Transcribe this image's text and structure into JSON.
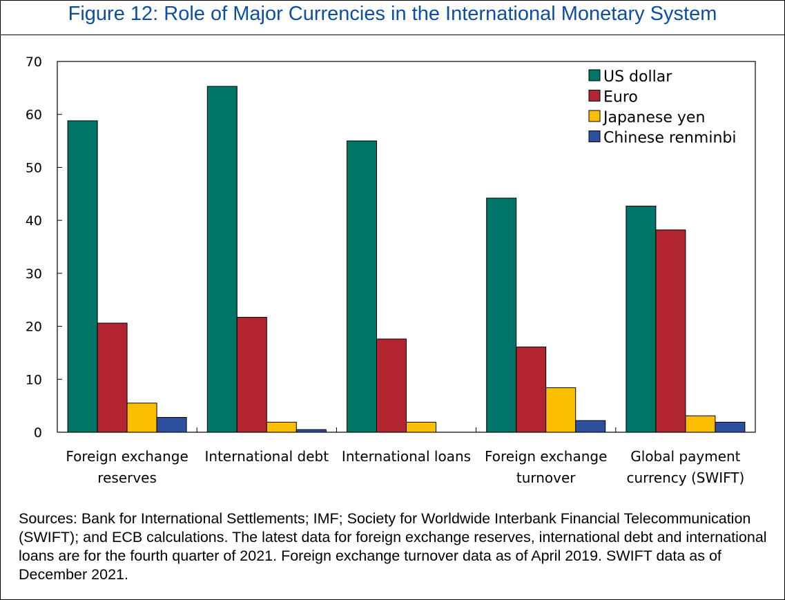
{
  "title": "Figure 12: Role of Major Currencies in the International Monetary System",
  "sources": "Sources: Bank for International Settlements; IMF; Society for Worldwide Interbank Financial Telecommunication (SWIFT); and ECB calculations. The latest data for foreign exchange reserves, international debt and international loans are for the fourth quarter of 2021. Foreign exchange turnover data as of April 2019. SWIFT data as of December 2021.",
  "chart_data": {
    "type": "bar",
    "title": "Figure 12: Role of Major Currencies in the International Monetary System",
    "xlabel": "",
    "ylabel": "",
    "ylim": [
      0,
      70
    ],
    "yticks": [
      0,
      10,
      20,
      30,
      40,
      50,
      60,
      70
    ],
    "grid": false,
    "legend_position": "top-right",
    "categories": [
      [
        "Foreign exchange",
        "reserves"
      ],
      [
        "International debt"
      ],
      [
        "International loans"
      ],
      [
        "Foreign exchange",
        "turnover"
      ],
      [
        "Global payment",
        "currency (SWIFT)"
      ]
    ],
    "series": [
      {
        "name": "US dollar",
        "color": "#007567",
        "values": [
          58.8,
          65.3,
          55.0,
          44.2,
          42.7
        ]
      },
      {
        "name": "Euro",
        "color": "#b22530",
        "values": [
          20.6,
          21.7,
          17.6,
          16.1,
          38.2
        ]
      },
      {
        "name": "Japanese yen",
        "color": "#fbbf00",
        "values": [
          5.5,
          1.9,
          1.9,
          8.4,
          3.1
        ]
      },
      {
        "name": "Chinese renminbi",
        "color": "#2d4f9e",
        "values": [
          2.8,
          0.5,
          null,
          2.2,
          1.9
        ]
      }
    ]
  }
}
